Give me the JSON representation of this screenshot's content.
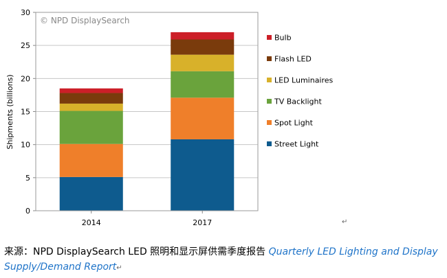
{
  "chart_data": {
    "type": "bar",
    "stacked": true,
    "categories": [
      "2014",
      "2017"
    ],
    "series": [
      {
        "name": "Street Light",
        "color": "#0e5b8e",
        "values": [
          5.1,
          10.8
        ]
      },
      {
        "name": "Spot Light",
        "color": "#ef7f2a",
        "values": [
          5.0,
          6.3
        ]
      },
      {
        "name": "TV Backlight",
        "color": "#6aa33c",
        "values": [
          5.0,
          4.0
        ]
      },
      {
        "name": "LED Luminaires",
        "color": "#d8b12a",
        "values": [
          1.1,
          2.5
        ]
      },
      {
        "name": "Flash LED",
        "color": "#7a3b0c",
        "values": [
          1.6,
          2.3
        ]
      },
      {
        "name": "Bulb",
        "color": "#cc1f28",
        "values": [
          0.7,
          1.1
        ]
      }
    ],
    "legend_order": [
      "Bulb",
      "Flash LED",
      "LED Luminaires",
      "TV Backlight",
      "Spot Light",
      "Street Light"
    ],
    "ylabel": "Shipments (billions)",
    "ylim": [
      0,
      30
    ],
    "yticks": [
      0,
      5,
      10,
      15,
      20,
      25,
      30
    ],
    "grid": true,
    "legend_position": "right",
    "watermark": "©  NPD DisplaySearch"
  },
  "caption": {
    "prefix": "来源：NPD DisplaySearch LED 照明和显示屏供需季度报告 ",
    "report_title": "Quarterly LED Lighting and Display Supply/Demand Report",
    "return_mark": "↵"
  }
}
